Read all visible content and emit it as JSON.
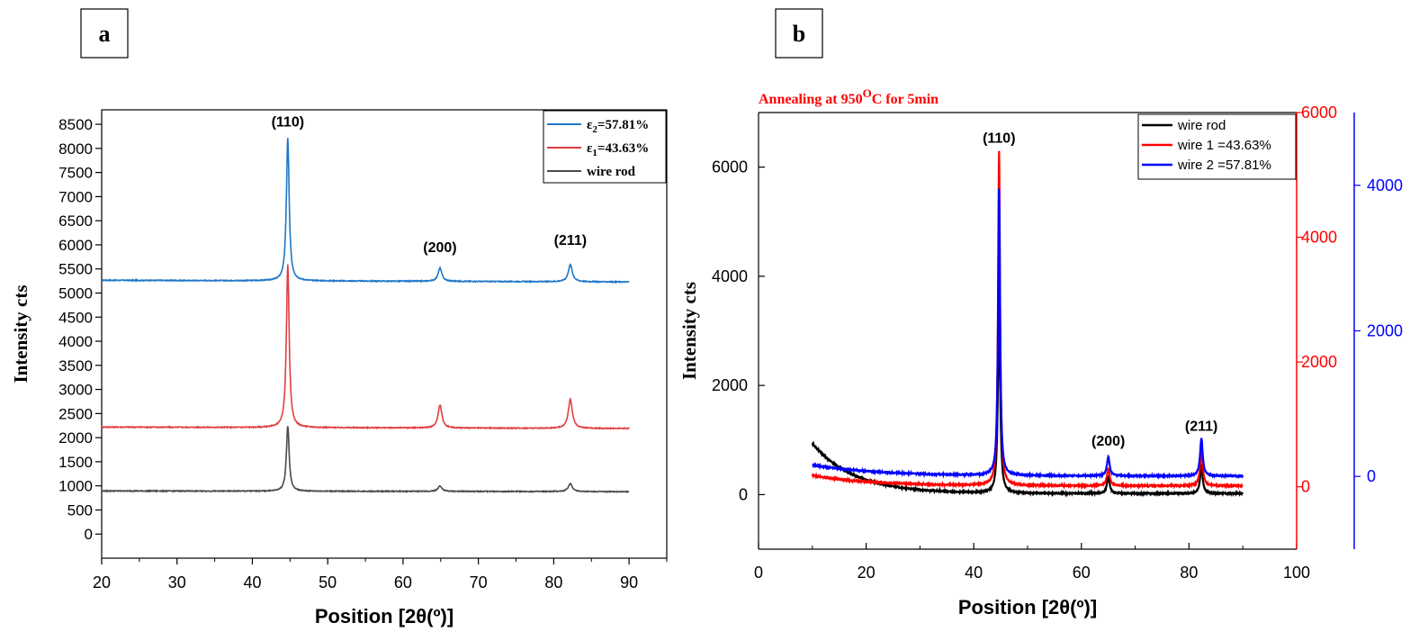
{
  "chart_data": [
    {
      "panel": "a",
      "type": "line",
      "title": "",
      "xlabel": "Position [2θ(º)]",
      "ylabel": "Intensity cts",
      "xlim": [
        20,
        95
      ],
      "ylim": [
        -500,
        8800
      ],
      "xticks": [
        20,
        30,
        40,
        50,
        60,
        70,
        80,
        90
      ],
      "yticks": [
        0,
        500,
        1000,
        1500,
        2000,
        2500,
        3000,
        3500,
        4000,
        4500,
        5000,
        5500,
        6000,
        6500,
        7000,
        7500,
        8000,
        8500
      ],
      "grid": false,
      "legend": "top-right",
      "peak_labels": [
        {
          "text": "(110)",
          "x": 44.7,
          "y": 8450
        },
        {
          "text": "(200)",
          "x": 64.9,
          "y": 5850
        },
        {
          "text": "(211)",
          "x": 82.2,
          "y": 6000
        }
      ],
      "series": [
        {
          "name": "ε2=57.81%",
          "legend_main": "ε",
          "legend_sub": "2",
          "legend_rest": "=57.81%",
          "color": "#1f77c8",
          "x_range": [
            20,
            90
          ],
          "baseline_start": 5265,
          "baseline_end": 5230,
          "peaks": [
            {
              "x": 44.7,
              "y": 8230,
              "w": 0.22
            },
            {
              "x": 64.9,
              "y": 5540,
              "w": 0.3
            },
            {
              "x": 82.2,
              "y": 5620,
              "w": 0.32
            }
          ]
        },
        {
          "name": "ε1=43.63%",
          "legend_main": "ε",
          "legend_sub": "1",
          "legend_rest": "=43.63%",
          "color": "#e04040",
          "x_range": [
            20,
            90
          ],
          "baseline_start": 2220,
          "baseline_end": 2190,
          "peaks": [
            {
              "x": 44.7,
              "y": 5600,
              "w": 0.22
            },
            {
              "x": 64.9,
              "y": 2700,
              "w": 0.3
            },
            {
              "x": 82.2,
              "y": 2820,
              "w": 0.32
            }
          ]
        },
        {
          "name": "wire rod",
          "legend_main": "wire rod",
          "legend_sub": "",
          "legend_rest": "",
          "color": "#4a4a4a",
          "x_range": [
            20,
            90
          ],
          "baseline_start": 895,
          "baseline_end": 880,
          "peaks": [
            {
              "x": 44.7,
              "y": 2250,
              "w": 0.22
            },
            {
              "x": 64.9,
              "y": 1010,
              "w": 0.3
            },
            {
              "x": 82.2,
              "y": 1060,
              "w": 0.32
            }
          ]
        }
      ]
    },
    {
      "panel": "b",
      "type": "line",
      "title": "Annealing at 950",
      "title_sup": "O",
      "title_rest": "C for 5min",
      "title_color": "#ff0000",
      "xlabel": "Position [2θ(º)]",
      "ylabel": "Intensity cts",
      "xlim": [
        0,
        100
      ],
      "ylim": [
        -1000,
        7000
      ],
      "xticks": [
        0,
        20,
        40,
        60,
        80,
        100
      ],
      "yticks": [
        0,
        2000,
        4000,
        6000
      ],
      "y2_color": "#ff0000",
      "y2_ticks": [
        0,
        2000,
        4000,
        6000
      ],
      "y2_lim": [
        -1000,
        6000
      ],
      "y3_color": "#0000ff",
      "y3_ticks": [
        0,
        2000,
        4000
      ],
      "y3_lim": [
        -1000,
        5000
      ],
      "grid": false,
      "legend": "top-right",
      "peak_labels": [
        {
          "text": "(110)",
          "x": 44.7,
          "y": 6450
        },
        {
          "text": "(200)",
          "x": 65,
          "y": 900
        },
        {
          "text": "(211)",
          "x": 82.3,
          "y": 1170
        }
      ],
      "series": [
        {
          "name": "wire rod",
          "color": "#000000",
          "axis": "left",
          "x_range": [
            10,
            90
          ],
          "baseline": 20,
          "decay": {
            "amp": 920,
            "k": 0.13
          },
          "peaks": [
            {
              "x": 44.7,
              "y": 3400,
              "w": 0.25
            },
            {
              "x": 65,
              "y": 330,
              "w": 0.3
            },
            {
              "x": 82.3,
              "y": 500,
              "w": 0.3
            }
          ]
        },
        {
          "name": "wire 1 =43.63%",
          "color": "#ff0000",
          "axis": "left",
          "x_range": [
            10,
            90
          ],
          "baseline": 160,
          "decay": {
            "amp": 190,
            "k": 0.09
          },
          "peaks": [
            {
              "x": 44.7,
              "y": 6280,
              "w": 0.22
            },
            {
              "x": 65,
              "y": 480,
              "w": 0.3
            },
            {
              "x": 82.3,
              "y": 800,
              "w": 0.3
            }
          ]
        },
        {
          "name": "wire 2 =57.81%",
          "color": "#0000ff",
          "axis": "left",
          "x_range": [
            10,
            90
          ],
          "baseline": 340,
          "decay": {
            "amp": 200,
            "k": 0.08
          },
          "peaks": [
            {
              "x": 44.7,
              "y": 5600,
              "w": 0.22
            },
            {
              "x": 65,
              "y": 690,
              "w": 0.3
            },
            {
              "x": 82.3,
              "y": 1030,
              "w": 0.3
            }
          ]
        }
      ]
    }
  ],
  "panel_labels": [
    "a",
    "b"
  ]
}
